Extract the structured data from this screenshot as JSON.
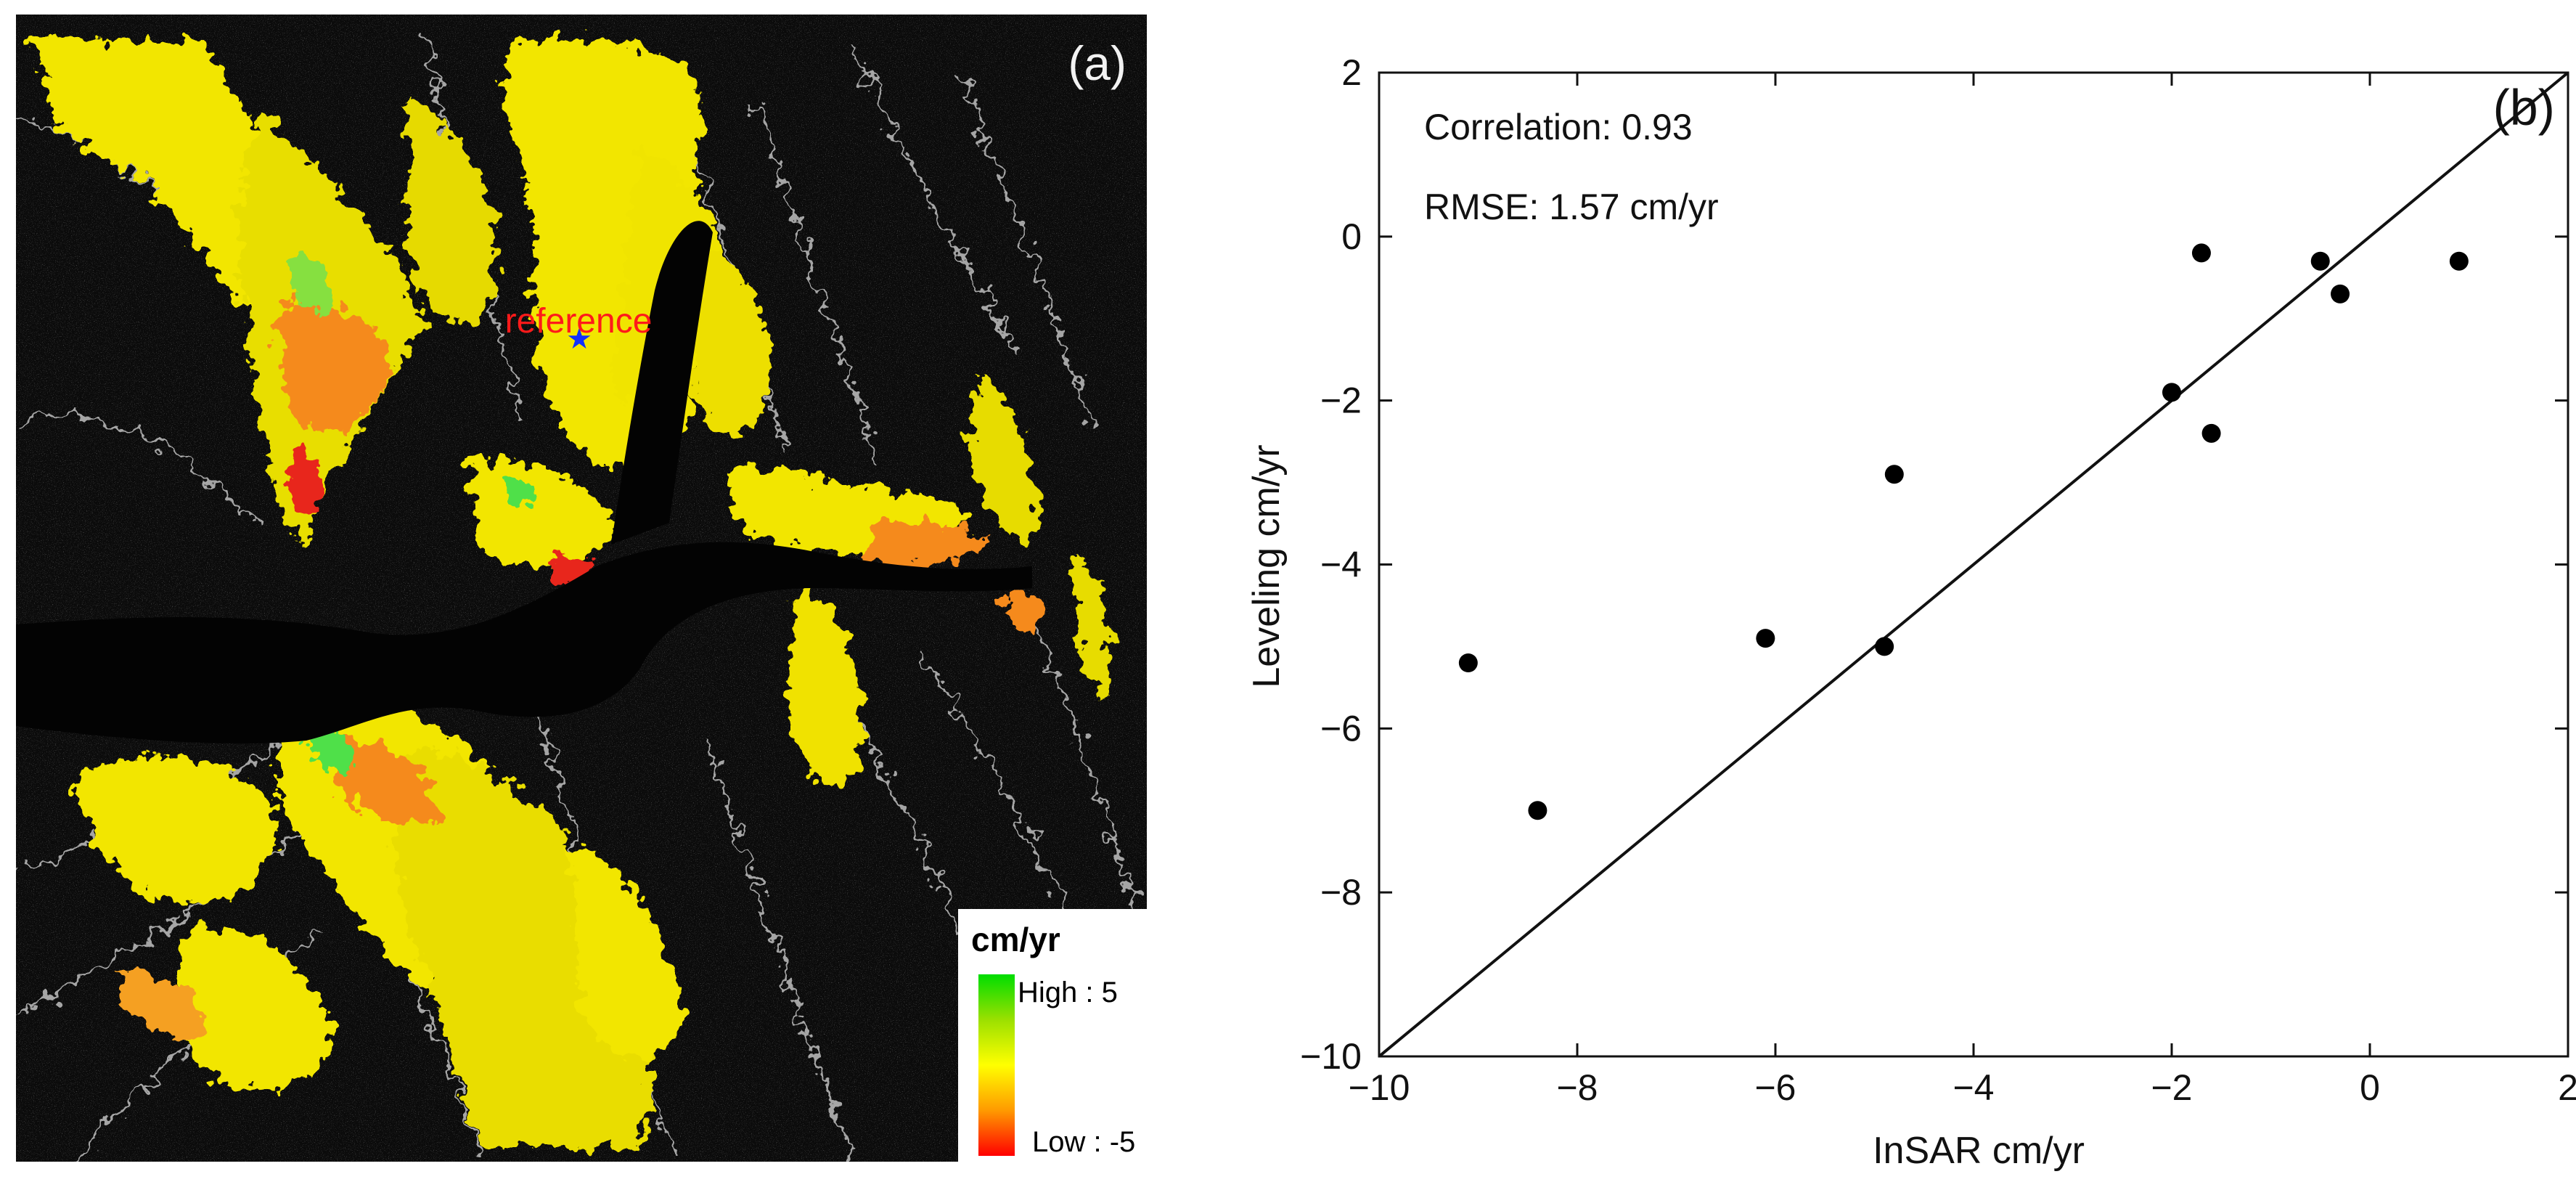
{
  "panel_a": {
    "label": "(a)",
    "reference_label": "reference",
    "legend": {
      "title": "cm/yr",
      "high_label": "High : 5",
      "low_label": "Low : -5",
      "colors": [
        "#00dd00",
        "#7fe000",
        "#ffff00",
        "#ffb000",
        "#ff6000",
        "#ff0000"
      ]
    },
    "colors": {
      "background": "#0a0a0a",
      "ridge": "#cfcfcf",
      "yellow": "#f2e600",
      "orange": "#f58a1f",
      "red": "#e8281e",
      "green": "#4fe04a",
      "reference_star": "#1030ff",
      "reference_text": "#ff1a1a"
    }
  },
  "chart_data": {
    "type": "scatter",
    "panel_label": "(b)",
    "title": "",
    "xlabel": "InSAR cm/yr",
    "ylabel": "Leveling cm/yr",
    "xlim": [
      -10,
      2
    ],
    "ylim": [
      -10,
      2
    ],
    "xticks": [
      -10,
      -8,
      -6,
      -4,
      -2,
      0,
      2
    ],
    "yticks": [
      -10,
      -8,
      -6,
      -4,
      -2,
      0,
      2
    ],
    "xtick_labels": [
      "−10",
      "−8",
      "−6",
      "−4",
      "−2",
      "0",
      "2"
    ],
    "ytick_labels": [
      "−10",
      "−8",
      "−6",
      "−4",
      "−2",
      "0",
      "2"
    ],
    "grid": false,
    "annotations": [
      "Correlation: 0.93",
      "RMSE: 1.57 cm/yr"
    ],
    "reference_line": {
      "label": "1:1 line",
      "from": [
        -10,
        -10
      ],
      "to": [
        2,
        2
      ]
    },
    "points": [
      {
        "x": -9.1,
        "y": -5.2
      },
      {
        "x": -8.4,
        "y": -7.0
      },
      {
        "x": -6.1,
        "y": -4.9
      },
      {
        "x": -4.9,
        "y": -5.0
      },
      {
        "x": -4.8,
        "y": -2.9
      },
      {
        "x": -2.0,
        "y": -1.9
      },
      {
        "x": -1.7,
        "y": -0.2
      },
      {
        "x": -1.6,
        "y": -2.4
      },
      {
        "x": -0.5,
        "y": -0.3
      },
      {
        "x": -0.3,
        "y": -0.7
      },
      {
        "x": 0.9,
        "y": -0.3
      }
    ]
  }
}
